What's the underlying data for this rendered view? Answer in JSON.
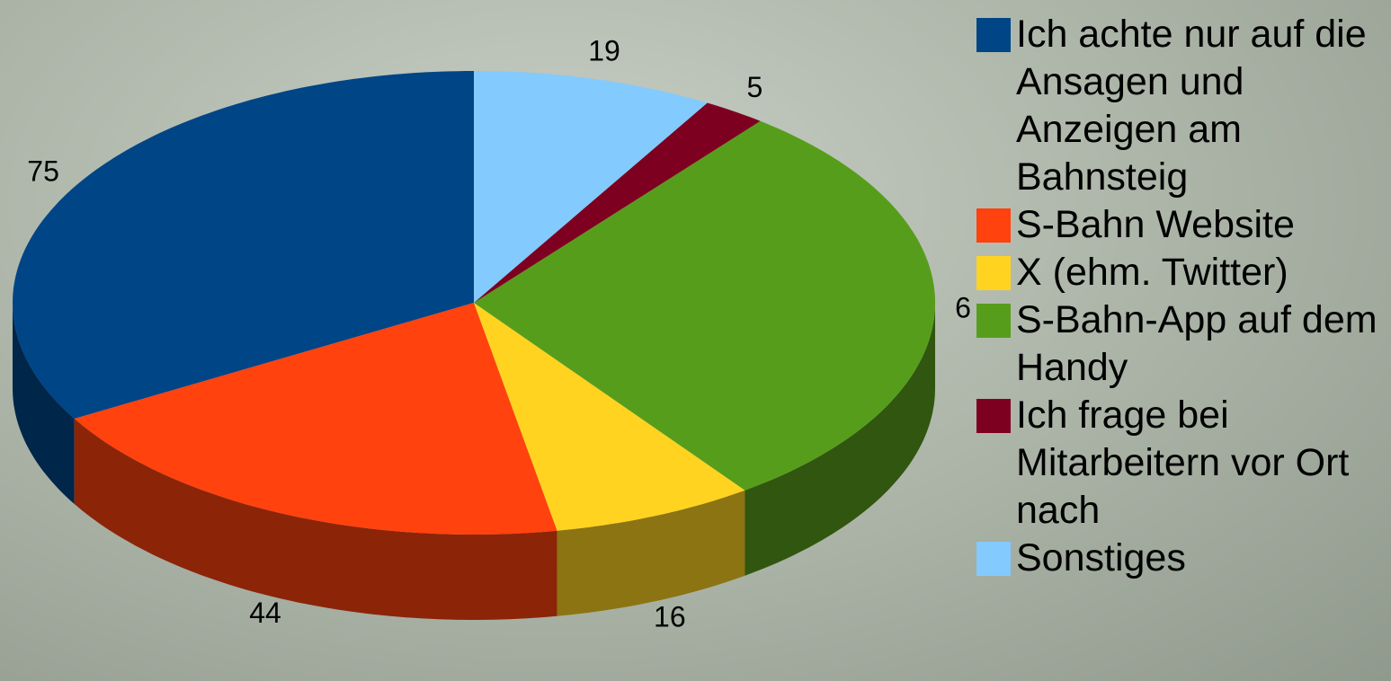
{
  "chart_data": {
    "type": "pie3d",
    "categories": [
      "Ich achte nur auf die Ansagen und Anzeigen am Bahnsteig",
      "S-Bahn Website",
      "X (ehm. Twitter)",
      "S-Bahn-App auf dem Handy",
      "Ich frage bei Mitarbeitern vor Ort nach",
      "Sonstiges"
    ],
    "values": [
      75,
      44,
      16,
      66,
      5,
      19
    ],
    "colors": [
      "#004586",
      "#ff420e",
      "#ffd320",
      "#579d1c",
      "#7e0021",
      "#83caff"
    ],
    "legend": "right"
  }
}
